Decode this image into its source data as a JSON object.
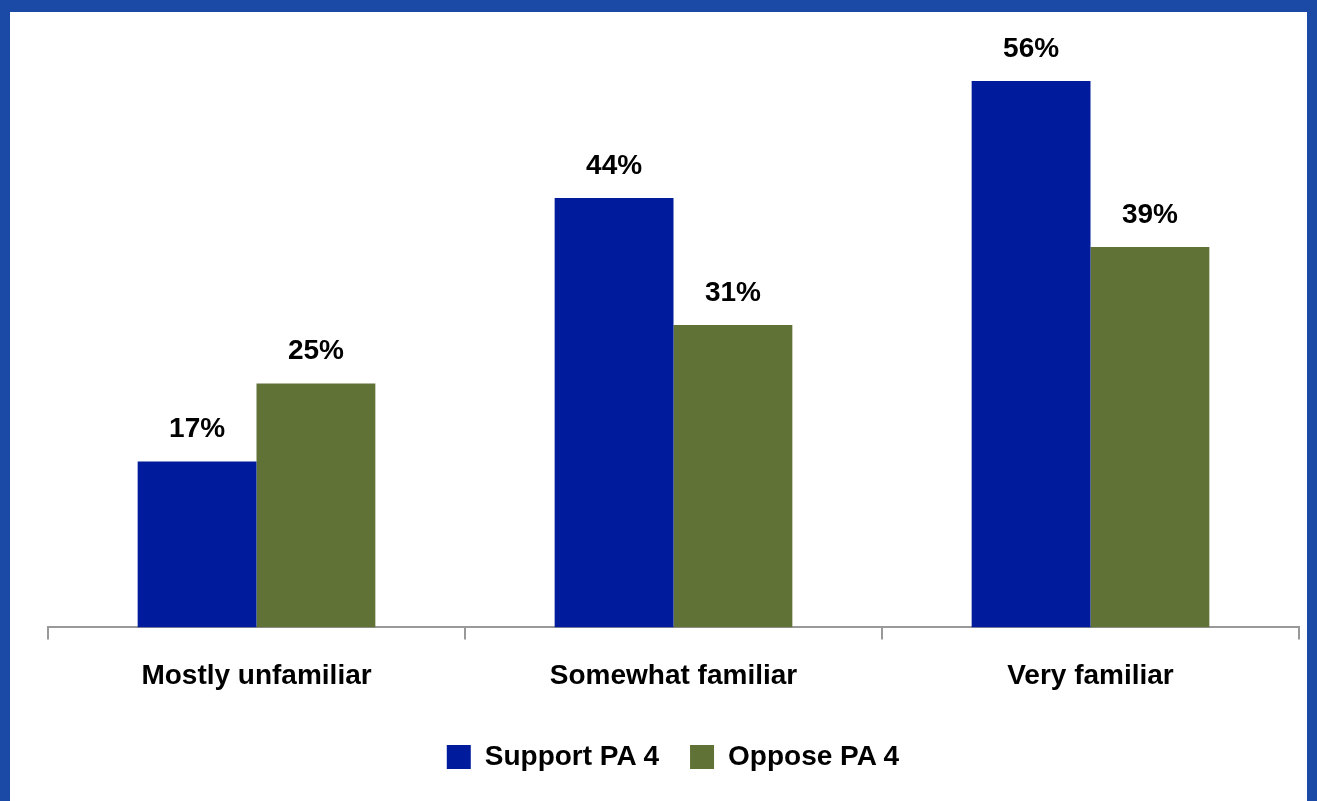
{
  "chart_data": {
    "type": "bar",
    "categories": [
      "Mostly unfamiliar",
      "Somewhat familiar",
      "Very familiar"
    ],
    "series": [
      {
        "name": "Support PA 4",
        "color": "#001c9c",
        "values": [
          17,
          44,
          56
        ],
        "value_labels": [
          "17%",
          "44%",
          "56%"
        ]
      },
      {
        "name": "Oppose PA 4",
        "color": "#607236",
        "values": [
          25,
          31,
          39
        ],
        "value_labels": [
          "25%",
          "31%",
          "39%"
        ]
      }
    ],
    "legend": "bottom"
  }
}
